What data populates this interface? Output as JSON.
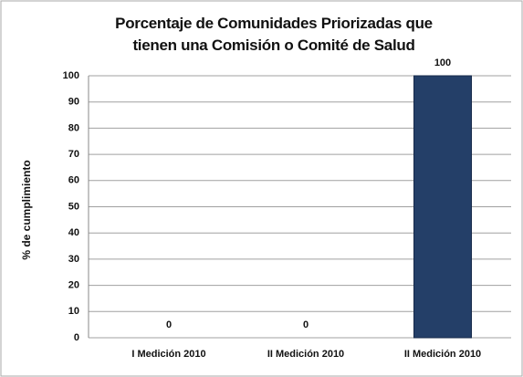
{
  "chart_data": {
    "type": "bar",
    "title": "Porcentaje de Comunidades Priorizadas que tienen una Comisión o Comité de Salud",
    "ylabel": "% de cumplimiento",
    "categories": [
      "I Medición 2010",
      "II Medición  2010",
      "II Medición 2010"
    ],
    "values": [
      0,
      0,
      100
    ],
    "color": "#243f68",
    "ylim": [
      0,
      100
    ],
    "yticks": [
      0,
      10,
      20,
      30,
      40,
      50,
      60,
      70,
      80,
      90,
      100
    ],
    "grid": true
  }
}
